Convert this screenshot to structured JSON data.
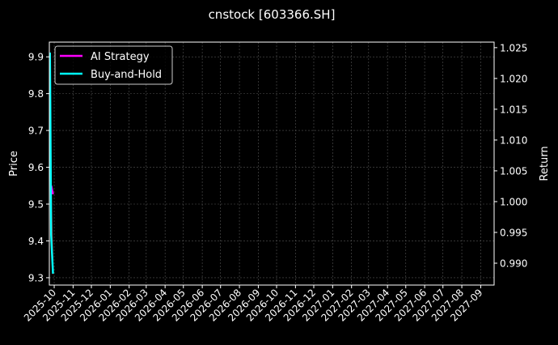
{
  "chart_data": {
    "type": "line",
    "title": "cnstock [603366.SH]",
    "ylabel_left": "Price",
    "ylabel_right": "Return",
    "xlabel": "",
    "grid": true,
    "legend_placement": "top-left",
    "xlim": [
      "2025-09-23",
      "2027-09-23"
    ],
    "ylim_left": [
      9.28,
      9.94
    ],
    "ylim_right": [
      0.98645,
      1.0259
    ],
    "x_ticks": [
      "2025-10",
      "2025-11",
      "2025-12",
      "2026-01",
      "2026-02",
      "2026-03",
      "2026-04",
      "2026-05",
      "2026-06",
      "2026-07",
      "2026-08",
      "2026-09",
      "2026-10",
      "2026-11",
      "2026-12",
      "2027-01",
      "2027-02",
      "2027-03",
      "2027-04",
      "2027-05",
      "2027-06",
      "2027-07",
      "2027-08",
      "2027-09"
    ],
    "y_ticks_left": [
      "9.3",
      "9.4",
      "9.5",
      "9.6",
      "9.7",
      "9.8",
      "9.9"
    ],
    "y_ticks_right": [
      "0.990",
      "0.995",
      "1.000",
      "1.005",
      "1.010",
      "1.015",
      "1.020",
      "1.025"
    ],
    "price": {
      "axis": "left",
      "color": "#b01818",
      "x": [
        "2025-09-24",
        "2025-09-26",
        "2025-09-29"
      ],
      "values": [
        9.9,
        9.53,
        9.31
      ]
    },
    "series": [
      {
        "name": "AI Strategy",
        "axis": "right",
        "color": "#ff00ff",
        "x": [
          "2025-09-26",
          "2025-09-29"
        ],
        "values": [
          1.0026,
          1.0012
        ]
      },
      {
        "name": "Buy-and-Hold",
        "axis": "right",
        "color": "#00ffff",
        "x": [
          "2025-09-24",
          "2025-09-26",
          "2025-09-29"
        ],
        "values": [
          1.0242,
          0.9946,
          0.9883
        ]
      }
    ]
  }
}
